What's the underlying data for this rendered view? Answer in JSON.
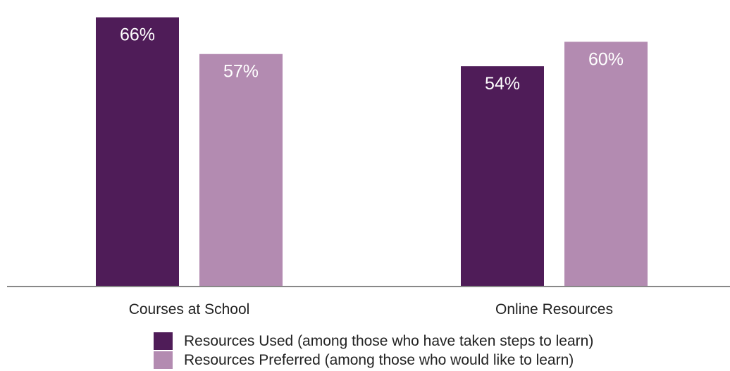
{
  "chart_data": {
    "type": "bar",
    "categories": [
      "Courses at School",
      "Online Resources"
    ],
    "series": [
      {
        "name": "Resources Used (among those who have taken steps to learn)",
        "values": [
          66,
          54
        ],
        "color": "#4f1c58"
      },
      {
        "name": "Resources Preferred (among those who would like to learn)",
        "values": [
          57,
          60
        ],
        "color": "#b38bb1"
      }
    ],
    "value_suffix": "%",
    "ylim": [
      0,
      68
    ],
    "grid": false,
    "legend": "bottom",
    "axis_color": "#888888"
  }
}
